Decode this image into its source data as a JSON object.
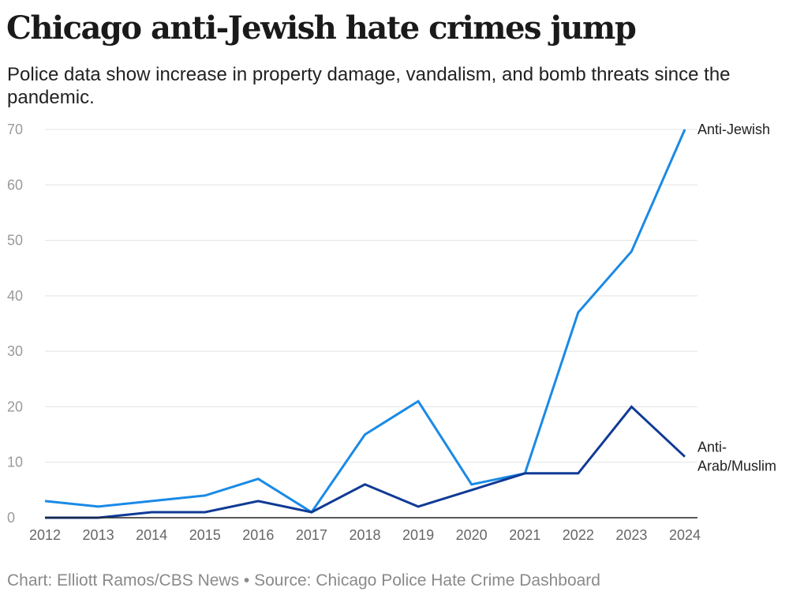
{
  "header": {
    "title": "Chicago anti-Jewish hate crimes jump",
    "subtitle": "Police data show increase in property damage, vandalism, and bomb threats since the pandemic."
  },
  "footer": {
    "credit": "Chart: Elliott Ramos/CBS News • Source: Chicago Police Hate Crime Dashboard"
  },
  "chart_data": {
    "type": "line",
    "title": "Chicago anti-Jewish hate crimes jump",
    "subtitle": "Police data show increase in property damage, vandalism, and bomb threats since the pandemic.",
    "xlabel": "",
    "ylabel": "",
    "x": [
      "2012",
      "2013",
      "2014",
      "2015",
      "2016",
      "2017",
      "2018",
      "2019",
      "2020",
      "2021",
      "2022",
      "2023",
      "2024"
    ],
    "ylim": [
      0,
      70
    ],
    "yticks": [
      0,
      10,
      20,
      30,
      40,
      50,
      60,
      70
    ],
    "grid": true,
    "series": [
      {
        "name": "Anti-Jewish",
        "label_lines": [
          "Anti-Jewish"
        ],
        "color": "#1a8ae6",
        "values": [
          3,
          2,
          3,
          4,
          7,
          1,
          15,
          21,
          6,
          8,
          37,
          48,
          70
        ]
      },
      {
        "name": "Anti-Arab/Muslim",
        "label_lines": [
          "Anti-",
          "Arab/Muslim"
        ],
        "color": "#0f3a96",
        "values": [
          0,
          0,
          1,
          1,
          3,
          1,
          6,
          2,
          5,
          8,
          8,
          20,
          11
        ]
      }
    ]
  }
}
